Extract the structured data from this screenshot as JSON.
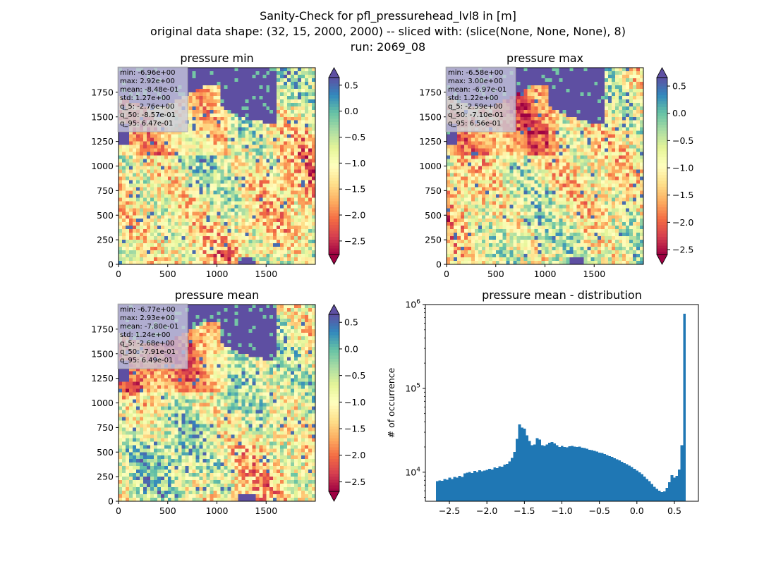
{
  "figure": {
    "suptitle": [
      "Sanity-Check for pfl_pressurehead_lvl8 in [m]",
      "original data shape: (32, 15, 2000, 2000) -- sliced with: (slice(None, None, None), 8)",
      "run: 2069_08"
    ]
  },
  "colors": {
    "colormap": "Spectral",
    "cmap_stops": [
      "#9e0142",
      "#d53e4f",
      "#f46d43",
      "#fdae61",
      "#fee08b",
      "#ffffbf",
      "#e6f598",
      "#abdda4",
      "#66c2a5",
      "#3288bd",
      "#5e4fa2"
    ],
    "ocean": "#5e4fa2",
    "histogram": "#1f77b4",
    "statbox_bg": "#c8c8dc"
  },
  "map_panels": [
    {
      "title": "pressure min",
      "stats": [
        "min: -6.96e+00",
        "max: 2.92e+00",
        "mean: -8.48e-01",
        "std: 1.27e+00",
        "q_5: -2.76e+00",
        "q_50: -8.57e-01",
        "q_95: 6.47e-01"
      ],
      "x_ticks": [
        "0",
        "500",
        "1000",
        "1500"
      ],
      "y_ticks": [
        "0",
        "250",
        "500",
        "750",
        "1000",
        "1250",
        "1500",
        "1750"
      ],
      "colorbar_ticks": [
        "0.5",
        "0.0",
        "−0.5",
        "−1.0",
        "−1.5",
        "−2.0",
        "−2.5"
      ]
    },
    {
      "title": "pressure max",
      "stats": [
        "min: -6.58e+00",
        "max: 3.00e+00",
        "mean: -6.97e-01",
        "std: 1.22e+00",
        "q_5: -2.59e+00",
        "q_50: -7.10e-01",
        "q_95: 6.56e-01"
      ],
      "x_ticks": [
        "0",
        "500",
        "1000",
        "1500"
      ],
      "y_ticks": [
        "0",
        "250",
        "500",
        "750",
        "1000",
        "1250",
        "1500",
        "1750"
      ],
      "colorbar_ticks": [
        "0.5",
        "0.0",
        "−0.5",
        "−1.0",
        "−1.5",
        "−2.0",
        "−2.5"
      ]
    },
    {
      "title": "pressure mean",
      "stats": [
        "min: -6.77e+00",
        "max: 2.93e+00",
        "mean: -7.80e-01",
        "std: 1.24e+00",
        "q_5: -2.68e+00",
        "q_50: -7.91e-01",
        "q_95: 6.49e-01"
      ],
      "x_ticks": [
        "0",
        "500",
        "1000",
        "1500"
      ],
      "y_ticks": [
        "0",
        "250",
        "500",
        "750",
        "1000",
        "1250",
        "1500",
        "1750"
      ],
      "colorbar_ticks": [
        "0.5",
        "0.0",
        "−0.5",
        "−1.0",
        "−1.5",
        "−2.0",
        "−2.5"
      ]
    }
  ],
  "chart_data": [
    {
      "type": "heatmap",
      "title": "pressure min",
      "xlim": [
        0,
        2000
      ],
      "ylim": [
        0,
        2000
      ],
      "x_ticks": [
        0,
        500,
        1000,
        1500
      ],
      "y_ticks": [
        0,
        250,
        500,
        750,
        1000,
        1250,
        1500,
        1750
      ],
      "colorbar": {
        "colormap": "Spectral",
        "range": [
          -2.76,
          0.647
        ],
        "ticks": [
          0.5,
          0.0,
          -0.5,
          -1.0,
          -1.5,
          -2.0,
          -2.5
        ],
        "extend": "both"
      }
    },
    {
      "type": "heatmap",
      "title": "pressure max",
      "xlim": [
        0,
        2000
      ],
      "ylim": [
        0,
        2000
      ],
      "x_ticks": [
        0,
        500,
        1000,
        1500
      ],
      "y_ticks": [
        0,
        250,
        500,
        750,
        1000,
        1250,
        1500,
        1750
      ],
      "colorbar": {
        "colormap": "Spectral",
        "range": [
          -2.59,
          0.656
        ],
        "ticks": [
          0.5,
          0.0,
          -0.5,
          -1.0,
          -1.5,
          -2.0,
          -2.5
        ],
        "extend": "both"
      }
    },
    {
      "type": "heatmap",
      "title": "pressure mean",
      "xlim": [
        0,
        2000
      ],
      "ylim": [
        0,
        2000
      ],
      "x_ticks": [
        0,
        500,
        1000,
        1500
      ],
      "y_ticks": [
        0,
        250,
        500,
        750,
        1000,
        1250,
        1500,
        1750
      ],
      "colorbar": {
        "colormap": "Spectral",
        "range": [
          -2.68,
          0.649
        ],
        "ticks": [
          0.5,
          0.0,
          -0.5,
          -1.0,
          -1.5,
          -2.0,
          -2.5
        ],
        "extend": "both"
      }
    },
    {
      "type": "bar",
      "title": "pressure mean - distribution",
      "xlabel": "",
      "ylabel": "# of occurrence",
      "yscale": "log",
      "xlim": [
        -2.82,
        0.82
      ],
      "ylim": [
        4500,
        1000000
      ],
      "x_ticks": [
        -2.5,
        -2.0,
        -1.5,
        -1.0,
        -0.5,
        0.0,
        0.5
      ],
      "x_tick_labels": [
        "−2.5",
        "−2.0",
        "−1.5",
        "−1.0",
        "−0.5",
        "0.0",
        "0.5"
      ],
      "y_ticks": [
        10000,
        100000,
        1000000
      ],
      "y_tick_labels": [
        "10^4",
        "10^5",
        "10^6"
      ],
      "bin_range": [
        -2.68,
        0.649
      ],
      "bin_count": 100,
      "counts": [
        7800,
        8000,
        7900,
        8300,
        8100,
        8600,
        8300,
        8800,
        8600,
        9000,
        8800,
        9700,
        9900,
        10100,
        9800,
        10400,
        10100,
        10600,
        10300,
        10500,
        10700,
        11000,
        10800,
        11400,
        11200,
        11700,
        11600,
        12300,
        12600,
        13400,
        14800,
        17500,
        25000,
        37000,
        34000,
        33000,
        27500,
        23500,
        21000,
        21500,
        25500,
        24500,
        21000,
        20500,
        21500,
        22500,
        23000,
        22000,
        21000,
        20000,
        20500,
        20000,
        19800,
        20300,
        20600,
        20200,
        19900,
        20100,
        19700,
        19400,
        19000,
        18500,
        18300,
        18000,
        17600,
        17200,
        17000,
        16500,
        16000,
        15500,
        15200,
        14700,
        14200,
        13800,
        13300,
        12800,
        12400,
        12000,
        11500,
        11000,
        10500,
        10000,
        9500,
        8900,
        8300,
        7800,
        7200,
        6700,
        6300,
        6000,
        5800,
        5900,
        6500,
        7600,
        9200,
        8600,
        9000,
        10800,
        21000,
        780000
      ]
    }
  ]
}
